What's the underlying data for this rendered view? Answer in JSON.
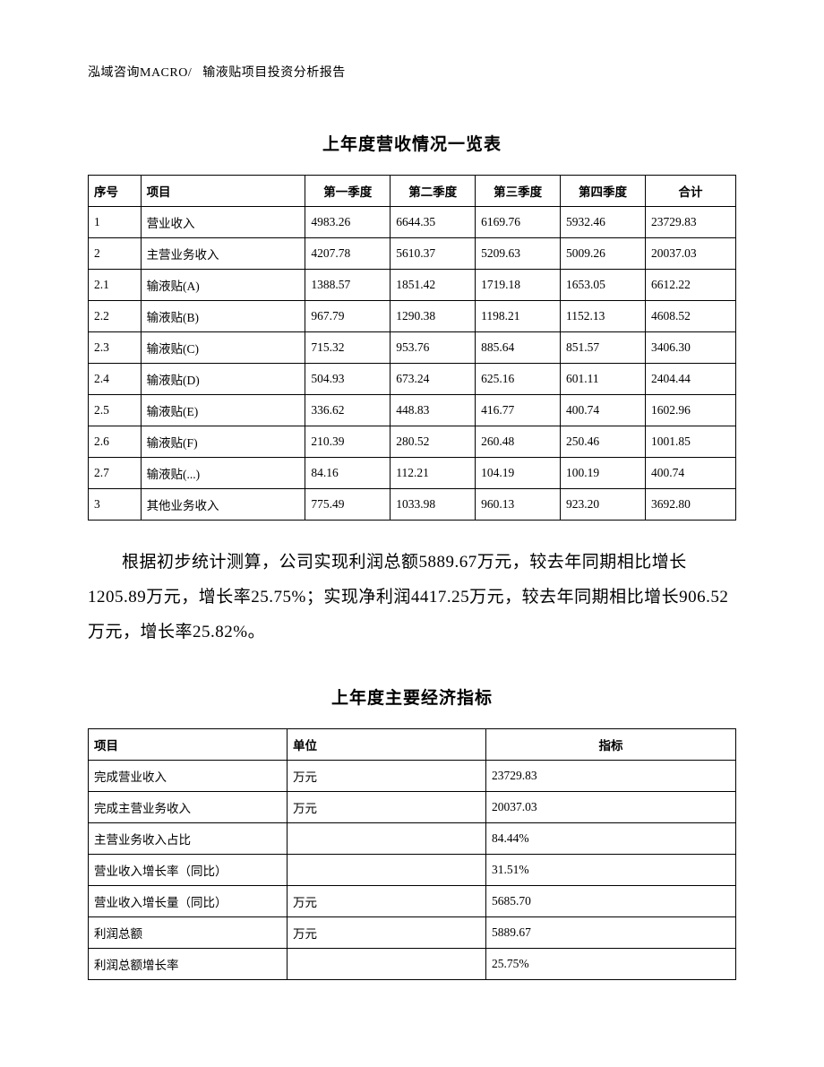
{
  "header": {
    "left": "泓域咨询MACRO/",
    "right": "输液贴项目投资分析报告"
  },
  "table1": {
    "title": "上年度营收情况一览表",
    "columns": [
      "序号",
      "项目",
      "第一季度",
      "第二季度",
      "第三季度",
      "第四季度",
      "合计"
    ],
    "rows": [
      [
        "1",
        "营业收入",
        "4983.26",
        "6644.35",
        "6169.76",
        "5932.46",
        "23729.83"
      ],
      [
        "2",
        "主营业务收入",
        "4207.78",
        "5610.37",
        "5209.63",
        "5009.26",
        "20037.03"
      ],
      [
        "2.1",
        "输液贴(A)",
        "1388.57",
        "1851.42",
        "1719.18",
        "1653.05",
        "6612.22"
      ],
      [
        "2.2",
        "输液贴(B)",
        "967.79",
        "1290.38",
        "1198.21",
        "1152.13",
        "4608.52"
      ],
      [
        "2.3",
        "输液贴(C)",
        "715.32",
        "953.76",
        "885.64",
        "851.57",
        "3406.30"
      ],
      [
        "2.4",
        "输液贴(D)",
        "504.93",
        "673.24",
        "625.16",
        "601.11",
        "2404.44"
      ],
      [
        "2.5",
        "输液贴(E)",
        "336.62",
        "448.83",
        "416.77",
        "400.74",
        "1602.96"
      ],
      [
        "2.6",
        "输液贴(F)",
        "210.39",
        "280.52",
        "260.48",
        "250.46",
        "1001.85"
      ],
      [
        "2.7",
        "输液贴(...)",
        "84.16",
        "112.21",
        "104.19",
        "100.19",
        "400.74"
      ],
      [
        "3",
        "其他业务收入",
        "775.49",
        "1033.98",
        "960.13",
        "923.20",
        "3692.80"
      ]
    ]
  },
  "paragraph": "根据初步统计测算，公司实现利润总额5889.67万元，较去年同期相比增长1205.89万元，增长率25.75%；实现净利润4417.25万元，较去年同期相比增长906.52万元，增长率25.82%。",
  "table2": {
    "title": "上年度主要经济指标",
    "columns": [
      "项目",
      "单位",
      "指标"
    ],
    "rows": [
      [
        "完成营业收入",
        "万元",
        "23729.83"
      ],
      [
        "完成主营业务收入",
        "万元",
        "20037.03"
      ],
      [
        "主营业务收入占比",
        "",
        "84.44%"
      ],
      [
        "营业收入增长率（同比）",
        "",
        "31.51%"
      ],
      [
        "营业收入增长量（同比）",
        "万元",
        "5685.70"
      ],
      [
        "利润总额",
        "万元",
        "5889.67"
      ],
      [
        "利润总额增长率",
        "",
        "25.75%"
      ]
    ]
  }
}
